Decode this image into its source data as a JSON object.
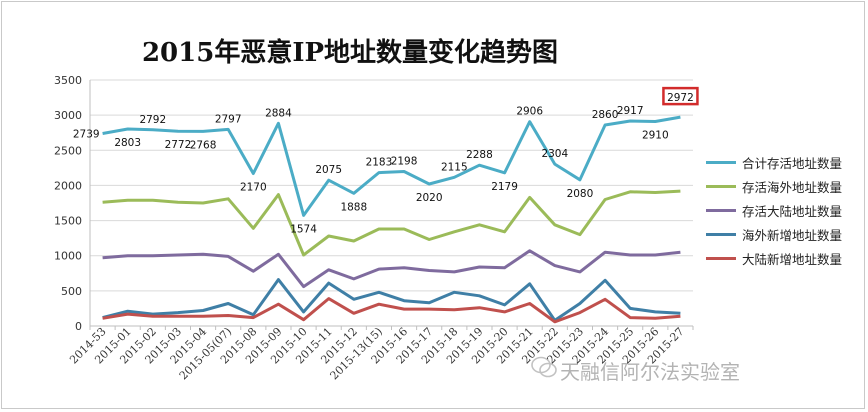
{
  "chart_data": {
    "type": "line",
    "title": "2015年恶意IP地址数量变化趋势图",
    "categories": [
      "2014-53",
      "2015-01",
      "2015-02",
      "2015-03",
      "2015-04",
      "2015-05(07)",
      "2015-08",
      "2015-09",
      "2015-10",
      "2015-11",
      "2015-12",
      "2015-13(15)",
      "2015-16",
      "2015-17",
      "2015-18",
      "2015-19",
      "2015-20",
      "2015-21",
      "2015-22",
      "2015-23",
      "2015-24",
      "2015-25",
      "2015-26",
      "2015-27"
    ],
    "category_labels": [
      "2014-53",
      "2015-01",
      "2015-02",
      "2015-03",
      "2015-04",
      "2015-05(07)",
      "2015-08",
      "2015-09",
      "2015-10",
      "2015-11",
      "2015-12",
      "2015-13(15)",
      "2015-16",
      "2015-17",
      "2015-18",
      "2015-19",
      "2015-20",
      "2015-21",
      "2015-22",
      "2015-23",
      "2015-24",
      "2015-25",
      "2015-26",
      "2015-27"
    ],
    "ylim": [
      0,
      3500
    ],
    "yticks": [
      0,
      500,
      1000,
      1500,
      2000,
      2500,
      3000,
      3500
    ],
    "grid": true,
    "legend_position": "right",
    "series": [
      {
        "name": "合计存活地址数量",
        "color": "#4bacc6",
        "values": [
          2739,
          2803,
          2792,
          2772,
          2768,
          2797,
          2170,
          2884,
          1574,
          2075,
          1888,
          2183,
          2198,
          2020,
          2115,
          2288,
          2179,
          2906,
          2304,
          2080,
          2860,
          2917,
          2910,
          2972
        ]
      },
      {
        "name": "存活海外地址数量",
        "color": "#9bbb59",
        "values": [
          1760,
          1790,
          1790,
          1760,
          1750,
          1810,
          1390,
          1870,
          1010,
          1280,
          1210,
          1380,
          1380,
          1230,
          1340,
          1440,
          1340,
          1830,
          1440,
          1300,
          1800,
          1910,
          1900,
          1920
        ]
      },
      {
        "name": "存活大陆地址数量",
        "color": "#7f6b9e",
        "values": [
          970,
          1000,
          1000,
          1010,
          1020,
          990,
          780,
          1020,
          560,
          800,
          670,
          810,
          830,
          790,
          770,
          840,
          830,
          1070,
          860,
          770,
          1050,
          1010,
          1010,
          1050
        ]
      },
      {
        "name": "海外新增地址数量",
        "color": "#3f7fa6",
        "values": [
          120,
          210,
          170,
          190,
          220,
          320,
          160,
          660,
          200,
          610,
          380,
          480,
          360,
          330,
          480,
          430,
          300,
          600,
          80,
          320,
          650,
          250,
          200,
          180
        ]
      },
      {
        "name": "大陆新增地址数量",
        "color": "#c0504d",
        "values": [
          110,
          170,
          140,
          140,
          140,
          150,
          120,
          310,
          90,
          390,
          180,
          310,
          240,
          240,
          230,
          260,
          200,
          320,
          60,
          190,
          380,
          120,
          110,
          140
        ]
      }
    ],
    "data_labels": {
      "series": 0,
      "texts": [
        "2739",
        "2803",
        "2792",
        "2772",
        "2768",
        "2797",
        "2170",
        "2884",
        "1574",
        "2075",
        "1888",
        "2183",
        "2198",
        "2020",
        "2115",
        "2288",
        "2179",
        "2906",
        "2304",
        "2080",
        "2860",
        "2917",
        "2910",
        "2972"
      ],
      "highlight_index": 23
    }
  },
  "watermark": {
    "text": "天融信阿尔法实验室"
  }
}
